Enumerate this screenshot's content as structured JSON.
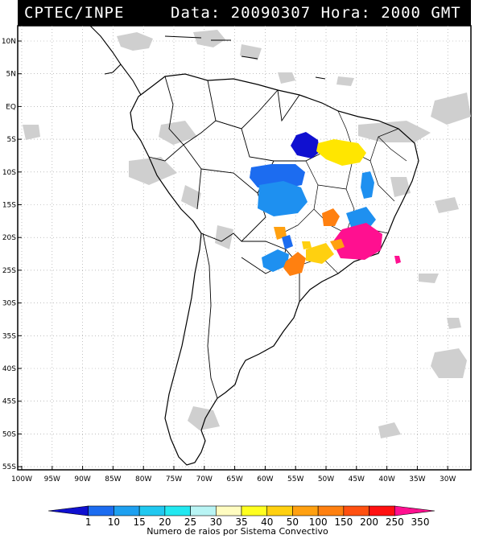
{
  "header": {
    "left": "CPTEC/INPE",
    "right": "Data: 20090307 Hora: 2000 GMT"
  },
  "lat_labels": [
    "10N",
    "5N",
    "EQ",
    "5S",
    "10S",
    "15S",
    "20S",
    "25S",
    "30S",
    "35S",
    "40S",
    "45S",
    "50S",
    "55S"
  ],
  "lon_labels": [
    "100W",
    "95W",
    "90W",
    "85W",
    "80W",
    "75W",
    "70W",
    "65W",
    "60W",
    "55W",
    "50W",
    "45W",
    "40W",
    "35W",
    "30W"
  ],
  "colorbar": {
    "labels": [
      "1",
      "10",
      "15",
      "20",
      "25",
      "30",
      "35",
      "40",
      "50",
      "100",
      "150",
      "200",
      "250",
      "350"
    ],
    "colors": [
      "#1010d0",
      "#1c6cf0",
      "#1ea0f0",
      "#20c8f0",
      "#22e8f0",
      "#b8f4f4",
      "#fffcc0",
      "#ffff20",
      "#ffd010",
      "#ffa010",
      "#ff8010",
      "#ff5010",
      "#ff1010",
      "#ff1090"
    ],
    "title": "Numero de raios por Sistema Convectivo"
  }
}
